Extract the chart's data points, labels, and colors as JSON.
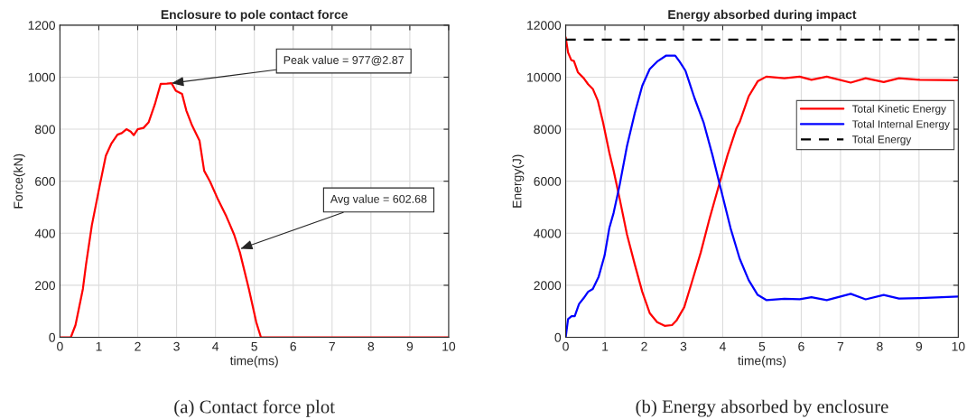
{
  "chart_data": [
    {
      "type": "line",
      "title": "Enclosure to pole contact force",
      "xlabel": "time(ms)",
      "ylabel": "Force(kN)",
      "xlim": [
        0,
        10
      ],
      "ylim": [
        0,
        1200
      ],
      "xticks": [
        0,
        1,
        2,
        3,
        4,
        5,
        6,
        7,
        8,
        9,
        10
      ],
      "yticks": [
        0,
        200,
        400,
        600,
        800,
        1000,
        1200
      ],
      "grid": true,
      "legend": false,
      "x": [
        0,
        0.28,
        0.4,
        0.59,
        0.67,
        0.82,
        1.02,
        1.18,
        1.32,
        1.48,
        1.59,
        1.71,
        1.82,
        1.9,
        2.0,
        2.15,
        2.28,
        2.44,
        2.59,
        2.75,
        2.87,
        2.98,
        3.14,
        3.25,
        3.4,
        3.59,
        3.71,
        3.86,
        4.05,
        4.28,
        4.48,
        4.63,
        4.86,
        5.05,
        5.17,
        10
      ],
      "series": [
        {
          "color": "#ff0000",
          "values": [
            0,
            0,
            47,
            186,
            279,
            430,
            581,
            698,
            744,
            779,
            785,
            800,
            791,
            777,
            800,
            805,
            826,
            895,
            974,
            975,
            977,
            948,
            936,
            872,
            814,
            756,
            640,
            599,
            535,
            465,
            395,
            326,
            186,
            58,
            0,
            0
          ]
        }
      ],
      "annotations": [
        {
          "text": "Peak value = 977@2.87",
          "x": 2.87,
          "y": 977
        },
        {
          "text": "Avg value = 602.68",
          "x": 4.64,
          "y": 340
        },
        "(a) Contact force plot"
      ]
    },
    {
      "type": "line",
      "title": "Energy absorbed during impact",
      "xlabel": "time(ms)",
      "ylabel": "Energy(J)",
      "xlim": [
        0,
        10
      ],
      "ylim": [
        0,
        12000
      ],
      "xticks": [
        0,
        1,
        2,
        3,
        4,
        5,
        6,
        7,
        8,
        9,
        10
      ],
      "yticks": [
        0,
        2000,
        4000,
        6000,
        8000,
        10000,
        12000
      ],
      "grid": true,
      "legend": "right",
      "series": [
        {
          "name": "Total Kinetic Energy",
          "color": "#ff0000",
          "x": [
            0,
            0.06,
            0.14,
            0.21,
            0.31,
            0.46,
            0.57,
            0.69,
            0.82,
            0.95,
            1.11,
            1.22,
            1.37,
            1.56,
            1.76,
            1.95,
            2.14,
            2.33,
            2.52,
            2.71,
            2.82,
            3.02,
            3.21,
            3.44,
            3.66,
            3.89,
            4.12,
            4.35,
            4.43,
            4.66,
            4.89,
            5.11,
            5.57,
            5.96,
            6.26,
            6.65,
            7.26,
            7.64,
            8.1,
            8.49,
            9.02,
            10
          ],
          "values": [
            11530,
            10950,
            10660,
            10620,
            10190,
            9960,
            9730,
            9550,
            9090,
            8270,
            7110,
            6410,
            5360,
            3960,
            2800,
            1750,
            930,
            580,
            440,
            470,
            640,
            1160,
            2100,
            3260,
            4540,
            5770,
            6990,
            8040,
            8270,
            9260,
            9840,
            10020,
            9960,
            10020,
            9900,
            10020,
            9790,
            9960,
            9810,
            9960,
            9900,
            9880
          ]
        },
        {
          "name": "Total Internal Energy",
          "color": "#0000ff",
          "x": [
            0,
            0.06,
            0.15,
            0.23,
            0.34,
            0.46,
            0.57,
            0.69,
            0.84,
            0.99,
            1.11,
            1.22,
            1.37,
            1.56,
            1.76,
            1.95,
            2.14,
            2.33,
            2.56,
            2.79,
            2.9,
            3.05,
            3.28,
            3.51,
            3.74,
            3.97,
            4.2,
            4.43,
            4.66,
            4.89,
            5.11,
            5.57,
            5.96,
            6.26,
            6.65,
            7.26,
            7.64,
            8.1,
            8.49,
            9.02,
            10
          ],
          "values": [
            0,
            700,
            815,
            815,
            1280,
            1510,
            1750,
            1860,
            2330,
            3140,
            4190,
            4780,
            5820,
            7340,
            8620,
            9670,
            10310,
            10600,
            10830,
            10830,
            10600,
            10250,
            9200,
            8270,
            6990,
            5590,
            4190,
            3030,
            2200,
            1630,
            1430,
            1480,
            1460,
            1540,
            1430,
            1670,
            1460,
            1630,
            1490,
            1510,
            1570
          ]
        },
        {
          "name": "Total Energy",
          "color": "#000000",
          "line_style": "dashed",
          "x": [
            0,
            10
          ],
          "values": [
            11440,
            11440
          ]
        }
      ],
      "annotations": [
        "(b) Energy absorbed by enclosure"
      ]
    }
  ]
}
